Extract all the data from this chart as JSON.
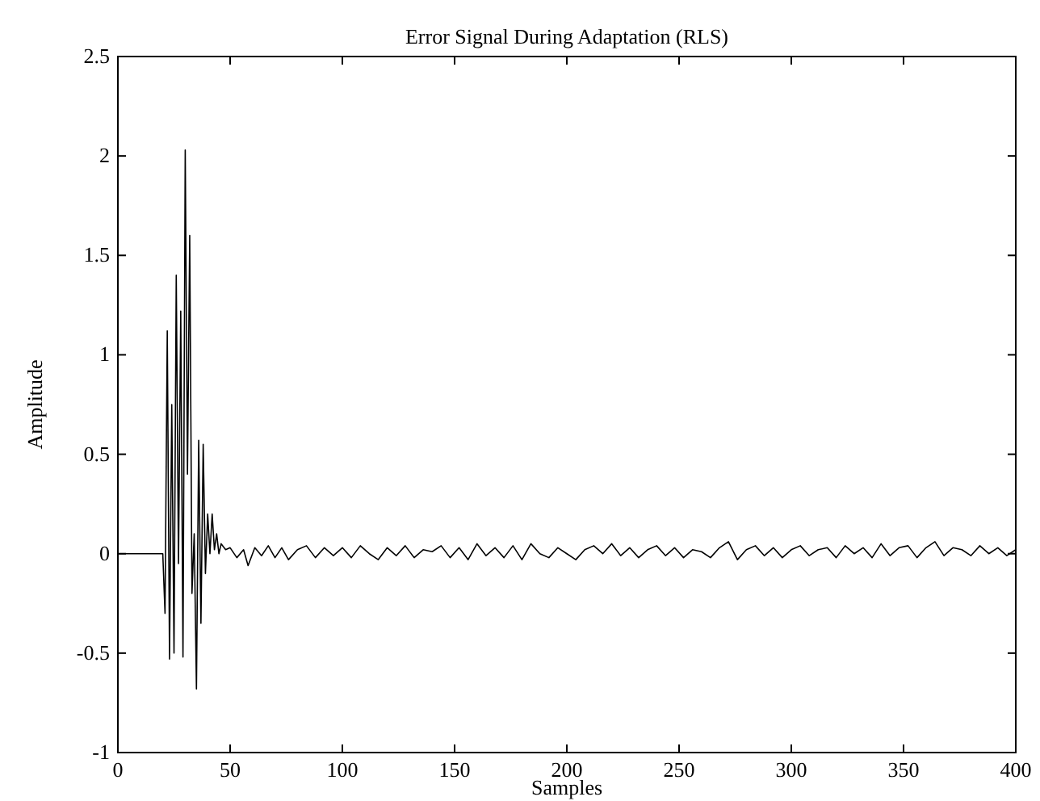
{
  "chart_data": {
    "type": "line",
    "title": "Error Signal During Adaptation (RLS)",
    "xlabel": "Samples",
    "ylabel": "Amplitude",
    "xlim": [
      0,
      400
    ],
    "ylim": [
      -1,
      2.5
    ],
    "xticks": [
      0,
      50,
      100,
      150,
      200,
      250,
      300,
      350,
      400
    ],
    "yticks": [
      -1,
      -0.5,
      0,
      0.5,
      1,
      1.5,
      2,
      2.5
    ],
    "grid": false,
    "series": [
      {
        "color": "#000000",
        "x": [
          0,
          19,
          20,
          21,
          22,
          23,
          24,
          25,
          26,
          27,
          28,
          29,
          30,
          31,
          32,
          33,
          34,
          35,
          36,
          37,
          38,
          39,
          40,
          41,
          42,
          43,
          44,
          45,
          46,
          48,
          50,
          53,
          56,
          58,
          61,
          64,
          67,
          70,
          73,
          76,
          80,
          84,
          88,
          92,
          96,
          100,
          104,
          108,
          112,
          116,
          120,
          124,
          128,
          132,
          136,
          140,
          144,
          148,
          152,
          156,
          160,
          164,
          168,
          172,
          176,
          180,
          184,
          188,
          192,
          196,
          200,
          204,
          208,
          212,
          216,
          220,
          224,
          228,
          232,
          236,
          240,
          244,
          248,
          252,
          256,
          260,
          264,
          268,
          272,
          276,
          280,
          284,
          288,
          292,
          296,
          300,
          304,
          308,
          312,
          316,
          320,
          324,
          328,
          332,
          336,
          340,
          344,
          348,
          352,
          356,
          360,
          364,
          368,
          372,
          376,
          380,
          384,
          388,
          392,
          396,
          400
        ],
        "values": [
          0,
          0,
          0,
          -0.3,
          1.12,
          -0.53,
          0.75,
          -0.5,
          1.4,
          -0.05,
          1.22,
          -0.52,
          2.03,
          0.4,
          1.6,
          -0.2,
          0.1,
          -0.68,
          0.57,
          -0.35,
          0.55,
          -0.1,
          0.2,
          0,
          0.2,
          0.02,
          0.1,
          0,
          0.05,
          0.02,
          0.03,
          -0.02,
          0.02,
          -0.06,
          0.03,
          -0.01,
          0.04,
          -0.02,
          0.03,
          -0.03,
          0.02,
          0.04,
          -0.02,
          0.03,
          -0.01,
          0.03,
          -0.02,
          0.04,
          0,
          -0.03,
          0.03,
          -0.01,
          0.04,
          -0.02,
          0.02,
          0.01,
          0.04,
          -0.02,
          0.03,
          -0.03,
          0.05,
          -0.01,
          0.03,
          -0.02,
          0.04,
          -0.03,
          0.05,
          0,
          -0.02,
          0.03,
          0,
          -0.03,
          0.02,
          0.04,
          0,
          0.05,
          -0.01,
          0.03,
          -0.02,
          0.02,
          0.04,
          -0.01,
          0.03,
          -0.02,
          0.02,
          0.01,
          -0.02,
          0.03,
          0.06,
          -0.03,
          0.02,
          0.04,
          -0.01,
          0.03,
          -0.02,
          0.02,
          0.04,
          -0.01,
          0.02,
          0.03,
          -0.02,
          0.04,
          0,
          0.03,
          -0.02,
          0.05,
          -0.01,
          0.03,
          0.04,
          -0.02,
          0.03,
          0.06,
          -0.01,
          0.03,
          0.02,
          -0.01,
          0.04,
          0,
          0.03,
          -0.01,
          0.02
        ]
      }
    ]
  }
}
